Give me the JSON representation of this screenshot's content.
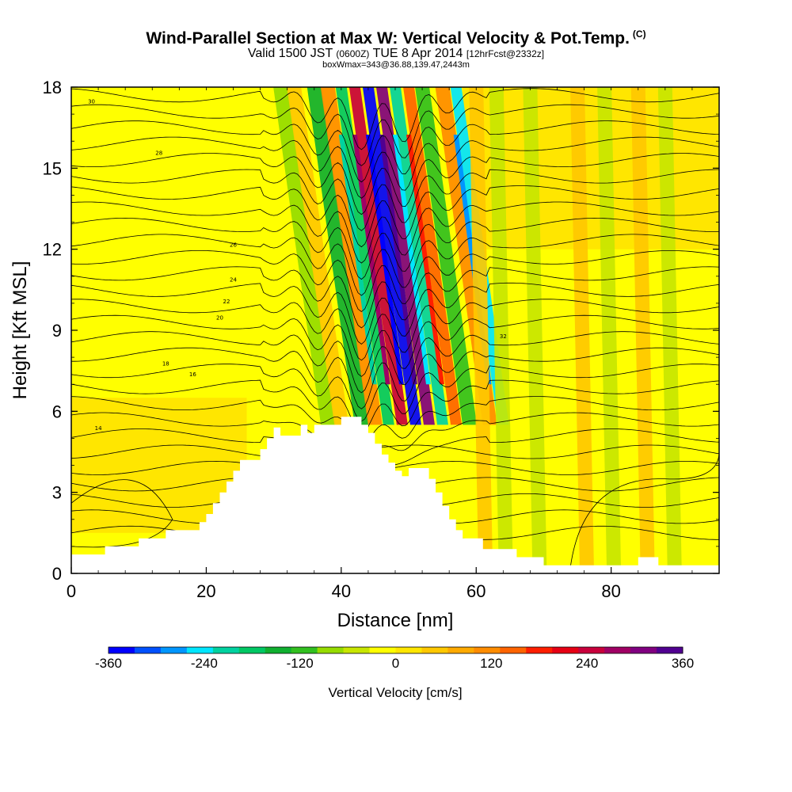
{
  "header": {
    "title": "Wind-Parallel Section at Max W: Vertical Velocity & Pot.Temp.",
    "copyright": "(C)",
    "valid_prefix": "Valid 1500 JST",
    "valid_utc": "(0600Z)",
    "valid_date": "TUE 8 Apr 2014",
    "forecast": "[12hrFcst@2332z]",
    "boxwmax": "boxWmax=343@36.88,139.47,2443m"
  },
  "chart_data": {
    "type": "heatmap",
    "xlabel": "Distance [nm]",
    "ylabel": "Height [Kft MSL]",
    "xlim": [
      0,
      96
    ],
    "ylim": [
      0,
      18
    ],
    "x_ticks": [
      0,
      20,
      40,
      60,
      80
    ],
    "y_ticks": [
      0,
      3,
      6,
      9,
      12,
      15,
      18
    ],
    "colorbar": {
      "title": "Vertical Velocity [cm/s]",
      "min": -360,
      "max": 360,
      "tick_labels": [
        "-360",
        "-240",
        "-120",
        "0",
        "120",
        "240",
        "360"
      ],
      "tick_values": [
        -360,
        -240,
        -120,
        0,
        120,
        240,
        360
      ],
      "colors": [
        "#0000ff",
        "#0050ff",
        "#0096ff",
        "#00e6ff",
        "#00d2a0",
        "#00c864",
        "#10b030",
        "#32c020",
        "#96dc00",
        "#c8e600",
        "#ffff00",
        "#ffe600",
        "#ffc800",
        "#ffaa00",
        "#ff8c00",
        "#ff6400",
        "#ff1e00",
        "#e60014",
        "#c8003c",
        "#a00064",
        "#800080",
        "#500090"
      ]
    },
    "terrain_kft": [
      [
        0,
        0.7
      ],
      [
        5,
        0.7
      ],
      [
        5,
        1.0
      ],
      [
        10,
        1.0
      ],
      [
        10,
        1.3
      ],
      [
        14,
        1.3
      ],
      [
        14,
        1.6
      ],
      [
        19,
        1.6
      ],
      [
        19,
        1.9
      ],
      [
        20,
        1.9
      ],
      [
        20,
        2.2
      ],
      [
        21,
        2.2
      ],
      [
        21,
        2.6
      ],
      [
        22,
        2.6
      ],
      [
        22,
        3.0
      ],
      [
        23,
        3.0
      ],
      [
        23,
        3.4
      ],
      [
        24,
        3.4
      ],
      [
        24,
        3.8
      ],
      [
        25,
        3.8
      ],
      [
        25,
        4.2
      ],
      [
        28,
        4.2
      ],
      [
        28,
        4.6
      ],
      [
        29,
        4.6
      ],
      [
        29,
        5.0
      ],
      [
        30,
        5.0
      ],
      [
        30,
        5.4
      ],
      [
        31,
        5.4
      ],
      [
        31,
        5.1
      ],
      [
        34,
        5.1
      ],
      [
        34,
        5.5
      ],
      [
        35,
        5.5
      ],
      [
        35,
        5.2
      ],
      [
        36,
        5.2
      ],
      [
        36,
        5.5
      ],
      [
        40,
        5.5
      ],
      [
        40,
        5.8
      ],
      [
        43,
        5.8
      ],
      [
        43,
        5.5
      ],
      [
        44,
        5.5
      ],
      [
        44,
        5.2
      ],
      [
        45,
        5.2
      ],
      [
        45,
        4.8
      ],
      [
        46,
        4.8
      ],
      [
        46,
        4.4
      ],
      [
        47,
        4.4
      ],
      [
        47,
        4.1
      ],
      [
        48,
        4.1
      ],
      [
        48,
        3.8
      ],
      [
        49,
        3.8
      ],
      [
        49,
        3.6
      ],
      [
        50,
        3.6
      ],
      [
        50,
        3.9
      ],
      [
        53,
        3.9
      ],
      [
        53,
        3.5
      ],
      [
        54,
        3.5
      ],
      [
        54,
        3.0
      ],
      [
        55,
        3.0
      ],
      [
        55,
        2.5
      ],
      [
        56,
        2.5
      ],
      [
        56,
        2.0
      ],
      [
        57,
        2.0
      ],
      [
        57,
        1.6
      ],
      [
        58,
        1.6
      ],
      [
        58,
        1.3
      ],
      [
        61,
        1.3
      ],
      [
        61,
        0.9
      ],
      [
        66,
        0.9
      ],
      [
        66,
        0.6
      ],
      [
        70,
        0.6
      ],
      [
        70,
        0.3
      ],
      [
        80,
        0.3
      ],
      [
        80,
        0.3
      ],
      [
        84,
        0.3
      ],
      [
        84,
        0.6
      ],
      [
        87,
        0.6
      ],
      [
        87,
        0.3
      ],
      [
        96,
        0.3
      ]
    ],
    "wave_bands": [
      {
        "x": 31,
        "w": -90
      },
      {
        "x": 33,
        "w": 60
      },
      {
        "x": 36,
        "w": -140
      },
      {
        "x": 38,
        "w": 120
      },
      {
        "x": 40,
        "w": -180
      },
      {
        "x": 42,
        "w": 240
      },
      {
        "x": 44,
        "w": -343
      },
      {
        "x": 46,
        "w": 300
      },
      {
        "x": 48,
        "w": -220
      },
      {
        "x": 50,
        "w": 160
      },
      {
        "x": 52,
        "w": -120
      },
      {
        "x": 55,
        "w": 110
      },
      {
        "x": 57,
        "w": -240
      },
      {
        "x": 60,
        "w": 60
      },
      {
        "x": 63,
        "w": -60
      },
      {
        "x": 68,
        "w": -50
      },
      {
        "x": 75,
        "w": 40
      },
      {
        "x": 79,
        "w": -50
      },
      {
        "x": 84,
        "w": 60
      },
      {
        "x": 88,
        "w": -40
      }
    ],
    "theta_labels": [
      "14",
      "16",
      "18",
      "20",
      "22",
      "24",
      "26",
      "28",
      "30",
      "32"
    ]
  }
}
